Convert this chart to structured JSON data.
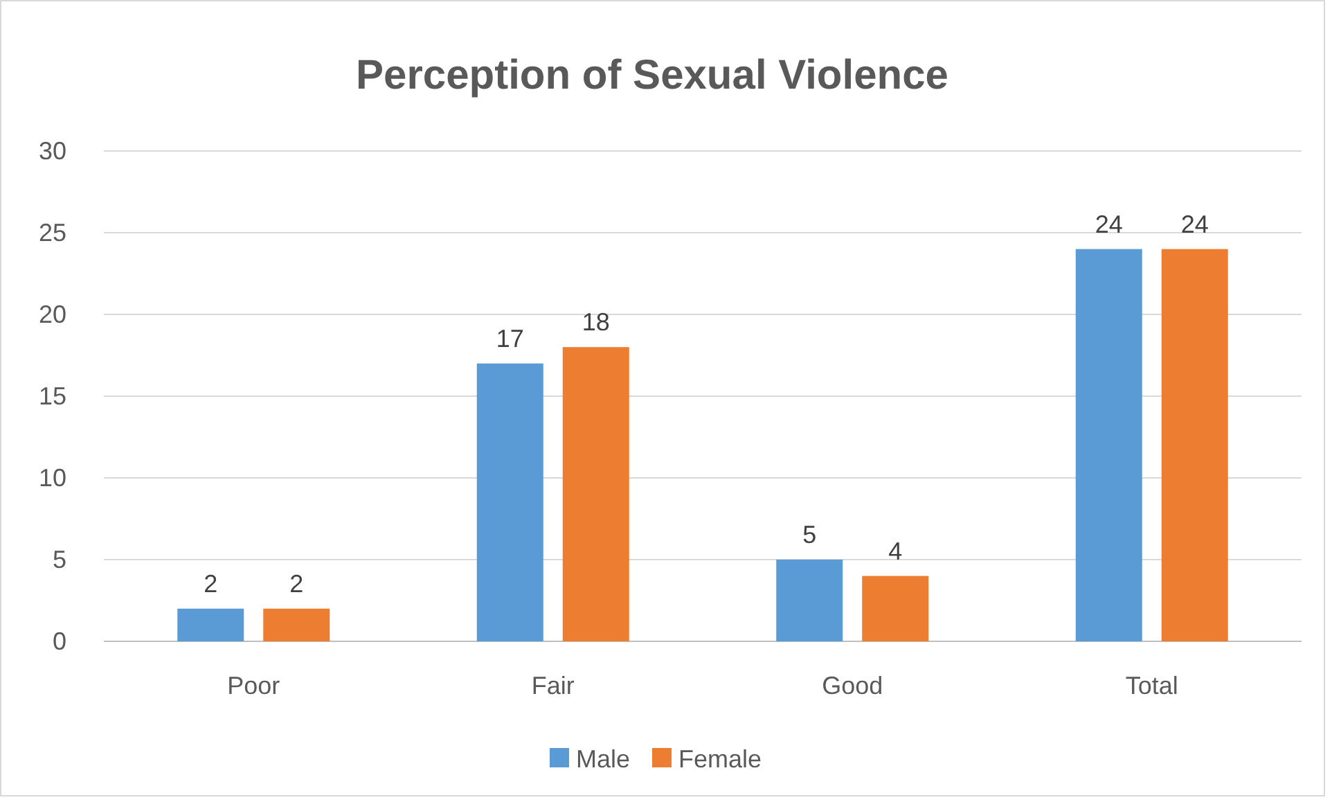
{
  "chart_data": {
    "type": "bar",
    "title": "Perception of Sexual Violence",
    "categories": [
      "Poor",
      "Fair",
      "Good",
      "Total"
    ],
    "series": [
      {
        "name": "Male",
        "color": "#5b9bd5",
        "values": [
          2,
          17,
          5,
          24
        ]
      },
      {
        "name": "Female",
        "color": "#ed7d31",
        "values": [
          2,
          18,
          4,
          24
        ]
      }
    ],
    "ylim": [
      0,
      30
    ],
    "yticks": [
      0,
      5,
      10,
      15,
      20,
      25,
      30
    ],
    "grid": "y",
    "legend": "bottom",
    "data_labels": true
  }
}
